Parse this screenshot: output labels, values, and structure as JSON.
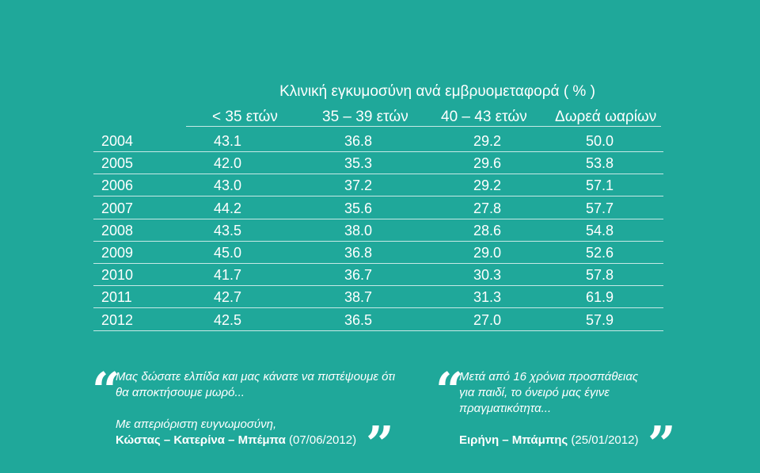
{
  "table": {
    "caption": "Κλινική εγκυμοσύνη ανά εμβρυομεταφορά ( % )",
    "columns": [
      "< 35 ετών",
      "35 – 39 ετών",
      "40 – 43 ετών",
      "Δωρεά ωαρίων"
    ],
    "rows": [
      {
        "year": "2004",
        "values": [
          "43.1",
          "36.8",
          "29.2",
          "50.0"
        ]
      },
      {
        "year": "2005",
        "values": [
          "42.0",
          "35.3",
          "29.6",
          "53.8"
        ]
      },
      {
        "year": "2006",
        "values": [
          "43.0",
          "37.2",
          "29.2",
          "57.1"
        ]
      },
      {
        "year": "2007",
        "values": [
          "44.2",
          "35.6",
          "27.8",
          "57.7"
        ]
      },
      {
        "year": "2008",
        "values": [
          "43.5",
          "38.0",
          "28.6",
          "54.8"
        ]
      },
      {
        "year": "2009",
        "values": [
          "45.0",
          "36.8",
          "29.0",
          "52.6"
        ]
      },
      {
        "year": "2010",
        "values": [
          "41.7",
          "36.7",
          "30.3",
          "57.8"
        ]
      },
      {
        "year": "2011",
        "values": [
          "42.7",
          "38.7",
          "31.3",
          "61.9"
        ]
      },
      {
        "year": "2012",
        "values": [
          "42.5",
          "36.5",
          "27.0",
          "57.9"
        ]
      }
    ]
  },
  "testimonials": [
    {
      "lines": [
        "Μας δώσατε ελπίδα και μας κάνατε να πιστέψουμε ότι",
        "θα αποκτήσουμε μωρό...",
        "",
        "Με απεριόριστη ευγνωμοσύνη,"
      ],
      "names": "Κώστας – Κατερίνα – Μπέμπα",
      "date": "(07/06/2012)"
    },
    {
      "lines": [
        "Μετά από 16 χρόνια προσπάθειας",
        "για παιδί, το όνειρό μας έγινε",
        "πραγματικότητα..."
      ],
      "names": "Ειρήνη – Μπάμπης",
      "date": "(25/01/2012)"
    }
  ],
  "quote_marks": {
    "open": "“",
    "close": "”"
  }
}
